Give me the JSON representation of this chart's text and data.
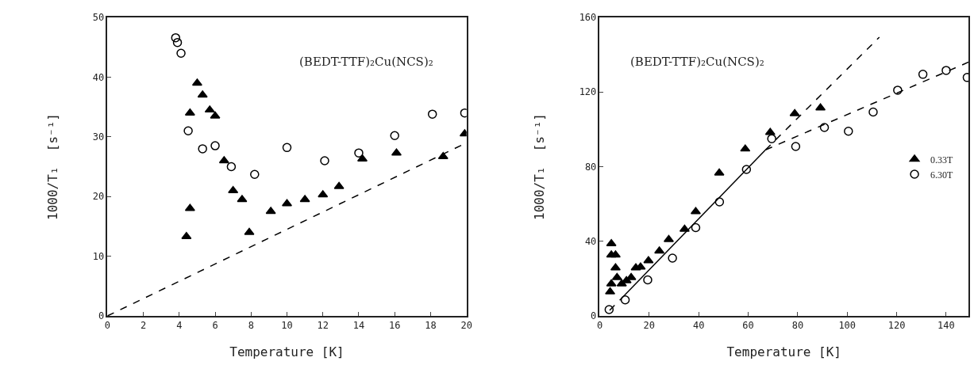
{
  "chart_data": [
    {
      "type": "scatter",
      "xlabel": "Temperature [K]",
      "ylabel": "1000/T₁  [s⁻¹]",
      "annotations": [
        "(BEDT-TTF)₂Cu(NCS)₂"
      ],
      "xlim": [
        0,
        20
      ],
      "xticks": [
        0,
        2,
        4,
        6,
        8,
        10,
        12,
        14,
        16,
        18,
        20
      ],
      "ylim": [
        0,
        50
      ],
      "yticks": [
        0,
        10,
        20,
        30,
        40,
        50
      ],
      "series": [
        {
          "color": "#000000",
          "marker": "triangle",
          "x": [
            4.4,
            4.6,
            4.6,
            5.0,
            5.3,
            5.7,
            6.0,
            6.5,
            7.0,
            7.5,
            7.9,
            9.1,
            10.0,
            11.0,
            12.0,
            12.9,
            14.2,
            16.1,
            18.7,
            19.9
          ],
          "values": [
            13.3,
            18,
            34,
            39,
            37,
            34.5,
            33.5,
            26,
            21,
            19.5,
            14,
            17.5,
            18.8,
            19.5,
            20.3,
            21.7,
            26.3,
            27.3,
            26.7,
            30.5
          ]
        },
        {
          "color": "#000000",
          "marker": "circle",
          "x": [
            3.8,
            3.9,
            4.1,
            4.5,
            5.3,
            6.0,
            6.9,
            8.2,
            10.0,
            12.1,
            14.0,
            16.0,
            18.1,
            19.9
          ],
          "values": [
            46.6,
            45.8,
            44,
            31,
            28,
            28.5,
            25,
            23.7,
            28.2,
            26,
            27.3,
            30.2,
            33.8,
            34
          ]
        },
        {
          "type": "line",
          "color": "#000000",
          "line_style": "dashed",
          "x": [
            0,
            20
          ],
          "values": [
            0,
            29
          ]
        }
      ]
    },
    {
      "type": "scatter",
      "xlabel": "Temperature [K]",
      "ylabel": "1000/T₁  [s⁻¹]",
      "annotations": [
        "(BEDT-TTF)₂Cu(NCS)₂"
      ],
      "xlim": [
        0,
        149
      ],
      "xticks": [
        0,
        20,
        40,
        60,
        80,
        100,
        120,
        140
      ],
      "ylim": [
        0,
        160
      ],
      "yticks": [
        0,
        40,
        80,
        120,
        160
      ],
      "legend": "right",
      "series": [
        {
          "name": "0.33T",
          "color": "#000000",
          "marker": "triangle",
          "x": [
            4.7,
            4.7,
            6.4,
            6.4,
            4.7,
            4.2,
            7.0,
            8.9,
            10.8,
            12.7,
            14.6,
            16.5,
            19.7,
            24.1,
            27.9,
            34.3,
            38.8,
            48.3,
            58.8,
            68.9,
            78.8,
            89.2
          ],
          "values": [
            38.7,
            32.7,
            32.7,
            25.8,
            17.2,
            12.9,
            20.6,
            17.2,
            18.9,
            20.6,
            25.8,
            26.2,
            29.6,
            34.8,
            41,
            46.5,
            55.9,
            76.6,
            89.5,
            98.4,
            108.4,
            111.5
          ]
        },
        {
          "name": "6.30T",
          "color": "#000000",
          "marker": "circle",
          "x": [
            3.8,
            10.3,
            19.4,
            29.4,
            38.8,
            48.4,
            59.3,
            69.5,
            79.2,
            90.8,
            100.5,
            110.5,
            120.4,
            130.6,
            140.0,
            148.5
          ],
          "values": [
            3.4,
            8.6,
            19.3,
            31,
            47.3,
            61.1,
            78.5,
            95,
            90.8,
            101,
            99,
            109.3,
            121,
            129.5,
            131.6,
            127.8
          ]
        },
        {
          "type": "line",
          "color": "#000000",
          "line_style": "dashed",
          "x": [
            4,
            10
          ],
          "values": [
            3,
            11
          ]
        },
        {
          "type": "line",
          "color": "#000000",
          "line_style": "solid",
          "x": [
            10,
            67
          ],
          "values": [
            11,
            89
          ]
        },
        {
          "type": "line",
          "color": "#000000",
          "line_style": "dashed",
          "x": [
            67,
            149
          ],
          "values": [
            89,
            136
          ]
        },
        {
          "type": "line",
          "color": "#000000",
          "line_style": "dashed",
          "x": [
            67,
            113
          ],
          "values": [
            89,
            149.4
          ]
        }
      ]
    }
  ]
}
